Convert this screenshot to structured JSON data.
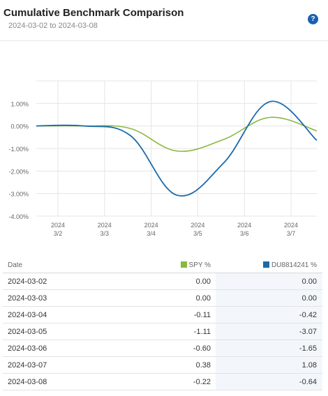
{
  "header": {
    "title": "Cumulative Benchmark Comparison",
    "subtitle": "2024-03-02 to 2024-03-08",
    "help_glyph": "?"
  },
  "colors": {
    "spy": "#8ab83f",
    "du": "#1a6aaa",
    "grid": "#e5e5e5",
    "help": "#1c5fb3"
  },
  "chart_data": {
    "type": "line",
    "x_ticks": [
      {
        "year": "2024",
        "day": "3/2"
      },
      {
        "year": "2024",
        "day": "3/3"
      },
      {
        "year": "2024",
        "day": "3/4"
      },
      {
        "year": "2024",
        "day": "3/5"
      },
      {
        "year": "2024",
        "day": "3/6"
      },
      {
        "year": "2024",
        "day": "3/7"
      }
    ],
    "y_ticks": [
      "1.00%",
      "0.00%",
      "-1.00%",
      "-2.00%",
      "-3.00%",
      "-4.00%"
    ],
    "y_tick_values": [
      1,
      0,
      -1,
      -2,
      -3,
      -4
    ],
    "ylim": [
      -4,
      2
    ],
    "dates": [
      "2024-03-02",
      "2024-03-03",
      "2024-03-04",
      "2024-03-05",
      "2024-03-06",
      "2024-03-07",
      "2024-03-08"
    ],
    "series": [
      {
        "name": "SPY %",
        "values": [
          0.0,
          0.0,
          -0.11,
          -1.11,
          -0.6,
          0.38,
          -0.22
        ]
      },
      {
        "name": "DU8814241 %",
        "values": [
          0.0,
          0.0,
          -0.42,
          -3.07,
          -1.65,
          1.08,
          -0.64
        ]
      }
    ]
  },
  "table": {
    "headers": {
      "date": "Date",
      "spy": "SPY %",
      "du": "DU8814241 %"
    },
    "rows": [
      {
        "date": "2024-03-02",
        "spy": "0.00",
        "du": "0.00"
      },
      {
        "date": "2024-03-03",
        "spy": "0.00",
        "du": "0.00"
      },
      {
        "date": "2024-03-04",
        "spy": "-0.11",
        "du": "-0.42"
      },
      {
        "date": "2024-03-05",
        "spy": "-1.11",
        "du": "-3.07"
      },
      {
        "date": "2024-03-06",
        "spy": "-0.60",
        "du": "-1.65"
      },
      {
        "date": "2024-03-07",
        "spy": "0.38",
        "du": "1.08"
      },
      {
        "date": "2024-03-08",
        "spy": "-0.22",
        "du": "-0.64"
      }
    ]
  }
}
